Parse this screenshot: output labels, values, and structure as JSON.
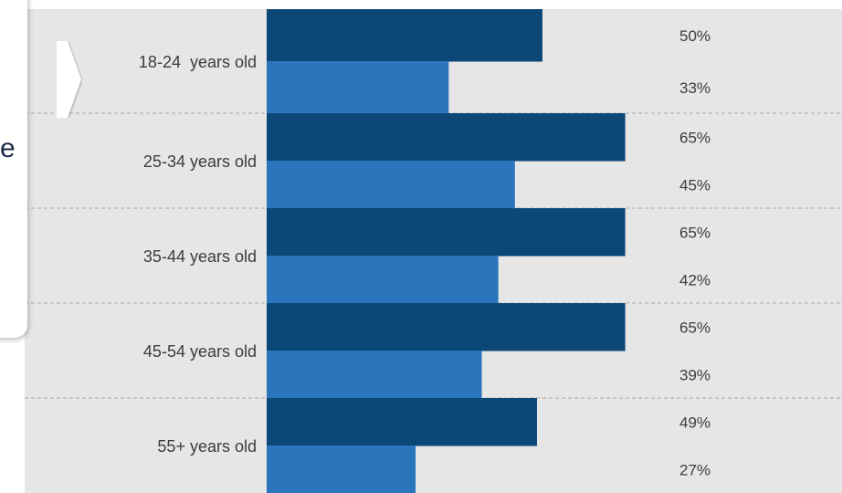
{
  "callout": {
    "partial_text": "e"
  },
  "chart_data": {
    "type": "bar",
    "orientation": "horizontal",
    "categories": [
      "18-24  years old",
      "25-34 years old",
      "35-44 years old",
      "45-54 years old",
      "55+ years old"
    ],
    "series": [
      {
        "values": [
          50,
          65,
          65,
          65,
          49
        ],
        "labels": [
          "50%",
          "65%",
          "65%",
          "65%",
          "49%"
        ],
        "color": "#0b4777"
      },
      {
        "values": [
          33,
          45,
          42,
          39,
          27
        ],
        "labels": [
          "33%",
          "45%",
          "42%",
          "39%",
          "27%"
        ],
        "color": "#2a75bc"
      }
    ],
    "xlim": [
      0,
      100
    ],
    "grid": false,
    "background_color": "#e6e6e7"
  }
}
